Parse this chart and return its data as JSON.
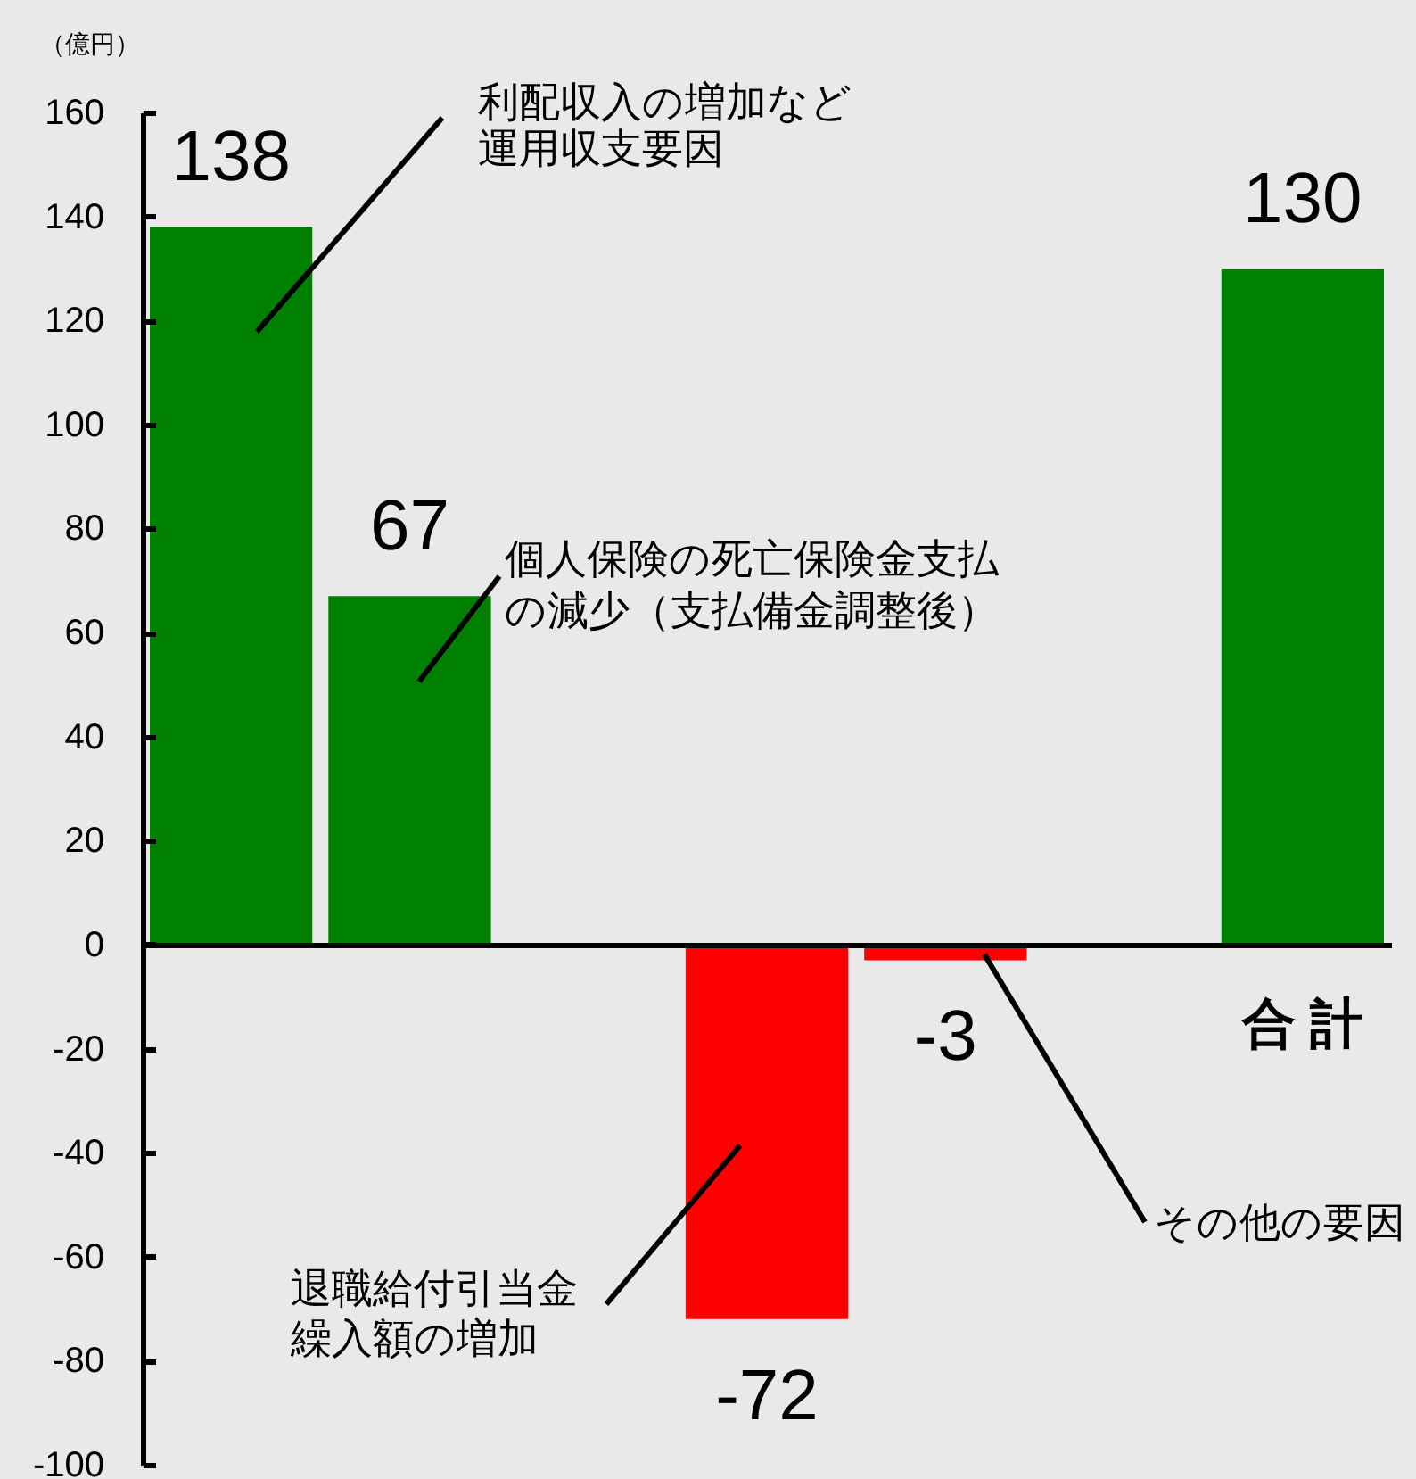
{
  "chart_data": {
    "type": "bar",
    "ylabel": "（億円）",
    "categories": [
      null,
      null,
      null,
      null,
      null,
      null,
      "合 計"
    ],
    "values": [
      138,
      67,
      null,
      -72,
      -3,
      null,
      130
    ],
    "colors": [
      "#008000",
      "#008000",
      null,
      "#ff0000",
      "#ff0000",
      null,
      "#008000"
    ],
    "ylim": [
      -100,
      160
    ],
    "yticks": [
      -100,
      -80,
      -60,
      -40,
      -20,
      0,
      20,
      40,
      60,
      80,
      100,
      120,
      140,
      160
    ],
    "data_labels": true,
    "annotations": [
      "利配収入の増加など運用収支要因",
      "個人保険の死亡保険金支払の減少（支払備金調整後）",
      "退職給付引当金繰入額の増加",
      "その他の要因"
    ]
  }
}
